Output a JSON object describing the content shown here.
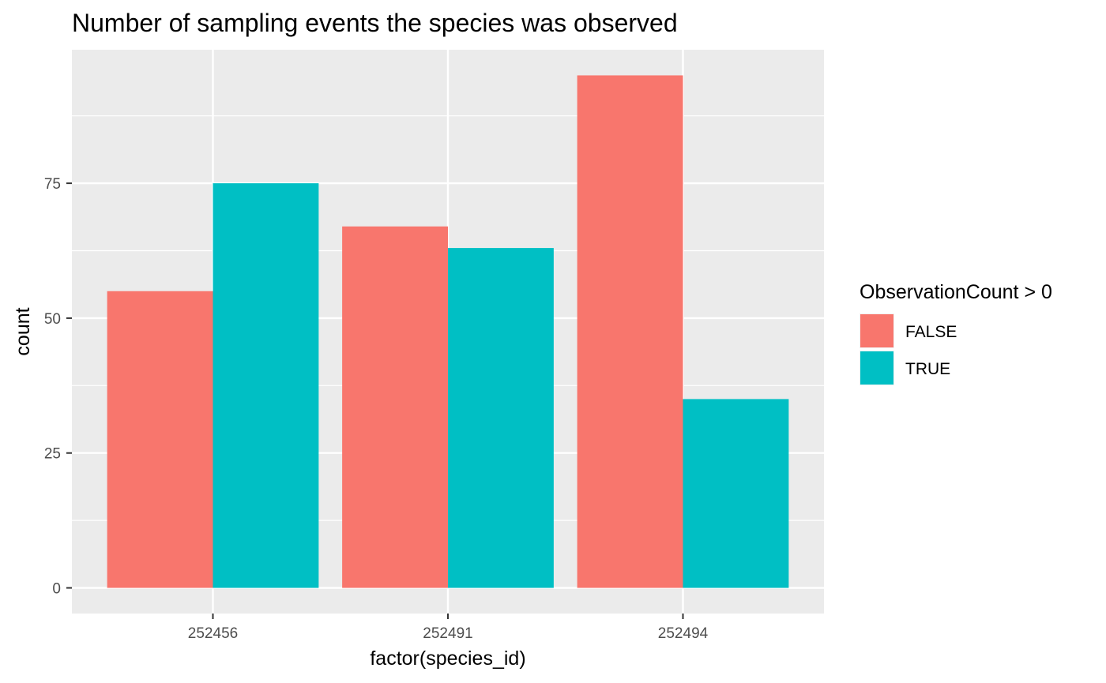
{
  "chart_data": {
    "type": "bar",
    "title": "Number of sampling events the species was observed",
    "xlabel": "factor(species_id)",
    "ylabel": "count",
    "categories": [
      "252456",
      "252491",
      "252494"
    ],
    "series": [
      {
        "name": "FALSE",
        "color": "#F8766D",
        "values": [
          55,
          67,
          95
        ]
      },
      {
        "name": "TRUE",
        "color": "#00BFC4",
        "values": [
          75,
          63,
          35
        ]
      }
    ],
    "yticks": [
      0,
      25,
      50,
      75
    ],
    "ylim": [
      -4.75,
      99.75
    ],
    "legend": {
      "title": "ObservationCount > 0",
      "position": "right"
    },
    "grid": true,
    "panel_background": "#EBEBEB"
  }
}
